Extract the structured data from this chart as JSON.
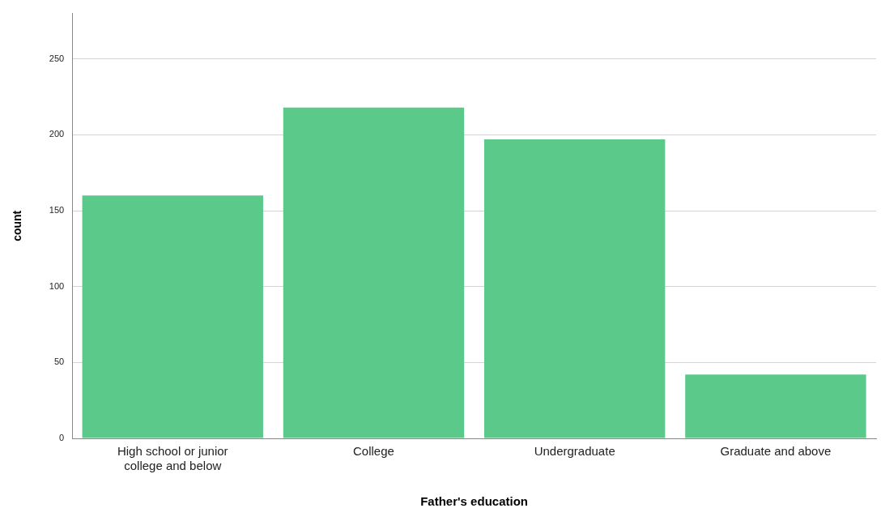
{
  "chart_data": {
    "type": "bar",
    "xlabel": "Father's education",
    "ylabel": "count",
    "categories": [
      "High school or junior college and below",
      "College",
      "Undergraduate",
      "Graduate and above"
    ],
    "values": [
      160,
      218,
      197,
      42
    ],
    "color": "#5ac98a",
    "ylim": [
      0,
      280
    ],
    "yticks": [
      0,
      50,
      100,
      150,
      200,
      250
    ],
    "grid": "y",
    "legend": false
  }
}
